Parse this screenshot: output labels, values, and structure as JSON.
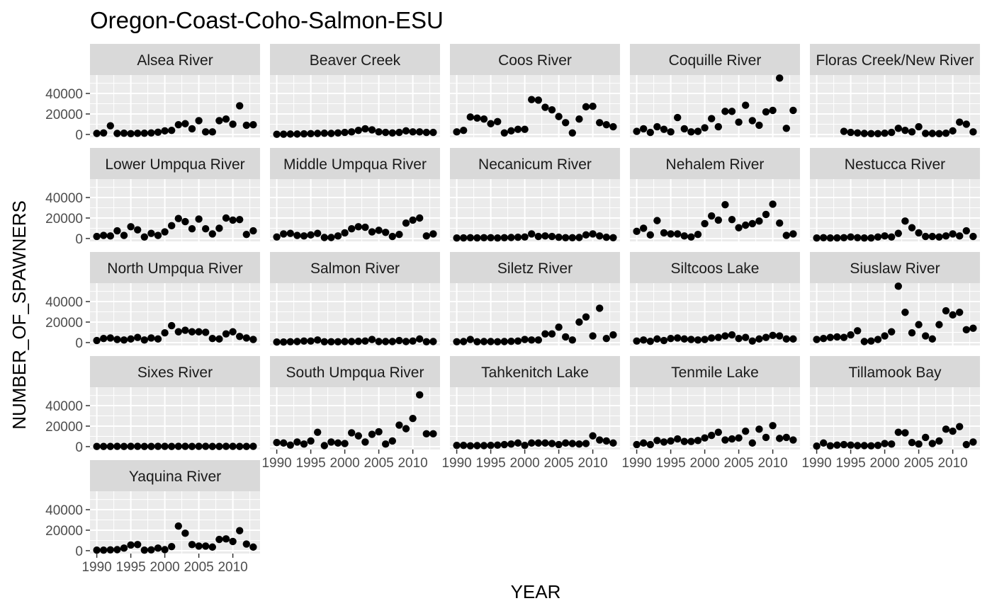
{
  "chart_data": {
    "type": "scatter",
    "title": "Oregon-Coast-Coho-Salmon-ESU",
    "xlabel": "YEAR",
    "ylabel": "NUMBER_OF_SPAWNERS",
    "xlim": [
      1989,
      2014
    ],
    "ylim": [
      -2800,
      58000
    ],
    "x_ticks": [
      1990,
      1995,
      2000,
      2005,
      2010
    ],
    "x_tick_labels": [
      "1990",
      "1995",
      "2000",
      "2005",
      "2010"
    ],
    "y_ticks": [
      0,
      20000,
      40000
    ],
    "y_tick_labels": [
      "0",
      "20000",
      "40000"
    ],
    "grid": true,
    "facets": [
      {
        "name": "Alsea River",
        "x": [
          1990,
          1991,
          1992,
          1993,
          1994,
          1995,
          1996,
          1997,
          1998,
          1999,
          2000,
          2001,
          2002,
          2003,
          2004,
          2005,
          2006,
          2007,
          2008,
          2009,
          2010,
          2011,
          2012,
          2013
        ],
        "y": [
          1000,
          1500,
          8500,
          1000,
          1200,
          800,
          1100,
          1200,
          1500,
          2200,
          3500,
          4000,
          9500,
          10500,
          5500,
          13500,
          2500,
          2500,
          13500,
          15000,
          10000,
          28000,
          9000,
          9500
        ]
      },
      {
        "name": "Beaver Creek",
        "x": [
          1990,
          1991,
          1992,
          1993,
          1994,
          1995,
          1996,
          1997,
          1998,
          1999,
          2000,
          2001,
          2002,
          2003,
          2004,
          2005,
          2006,
          2007,
          2008,
          2009,
          2010,
          2011,
          2012,
          2013
        ],
        "y": [
          200,
          300,
          400,
          400,
          600,
          800,
          1000,
          1200,
          1000,
          1500,
          2000,
          2500,
          4000,
          5500,
          4500,
          2500,
          2000,
          1500,
          2000,
          3500,
          2500,
          2500,
          2000,
          2000
        ]
      },
      {
        "name": "Coos River",
        "x": [
          1990,
          1991,
          1992,
          1993,
          1994,
          1995,
          1996,
          1997,
          1998,
          1999,
          2000,
          2001,
          2002,
          2003,
          2004,
          2005,
          2006,
          2007,
          2008,
          2009,
          2010,
          2011,
          2012,
          2013
        ],
        "y": [
          2500,
          4000,
          17000,
          16000,
          15000,
          10500,
          12500,
          1500,
          3500,
          5000,
          5000,
          34000,
          33500,
          26500,
          24000,
          17500,
          11500,
          1500,
          15000,
          27000,
          27500,
          11500,
          9500,
          7500
        ]
      },
      {
        "name": "Coquille River",
        "x": [
          1990,
          1991,
          1992,
          1993,
          1994,
          1995,
          1996,
          1997,
          1998,
          1999,
          2000,
          2001,
          2002,
          2003,
          2004,
          2005,
          2006,
          2007,
          2008,
          2009,
          2010,
          2011,
          2012,
          2013
        ],
        "y": [
          3000,
          5500,
          2000,
          7500,
          5000,
          2500,
          16500,
          5500,
          2500,
          3000,
          6500,
          15500,
          7500,
          22500,
          22500,
          12000,
          28500,
          13500,
          9000,
          22000,
          23500,
          55000,
          6000,
          23500
        ]
      },
      {
        "name": "Floras Creek/New River",
        "x": [
          1994,
          1995,
          1996,
          1997,
          1998,
          1999,
          2000,
          2001,
          2002,
          2003,
          2004,
          2005,
          2006,
          2007,
          2008,
          2009,
          2010,
          2011,
          2012,
          2013
        ],
        "y": [
          3000,
          2000,
          1500,
          1000,
          800,
          800,
          1200,
          2000,
          6000,
          4000,
          2500,
          7500,
          1000,
          1000,
          800,
          1200,
          3500,
          12000,
          10000,
          2500
        ]
      },
      {
        "name": "Lower Umpqua River",
        "x": [
          1990,
          1991,
          1992,
          1993,
          1994,
          1995,
          1996,
          1997,
          1998,
          1999,
          2000,
          2001,
          2002,
          2003,
          2004,
          2005,
          2006,
          2007,
          2008,
          2009,
          2010,
          2011,
          2012,
          2013
        ],
        "y": [
          2000,
          3000,
          2500,
          7500,
          3000,
          11500,
          8500,
          1500,
          5000,
          3000,
          6500,
          12500,
          19500,
          16500,
          9500,
          19000,
          9500,
          4500,
          10000,
          20000,
          18000,
          18500,
          4000,
          7500
        ]
      },
      {
        "name": "Middle Umpqua River",
        "x": [
          1990,
          1991,
          1992,
          1993,
          1994,
          1995,
          1996,
          1997,
          1998,
          1999,
          2000,
          2001,
          2002,
          2003,
          2004,
          2005,
          2006,
          2007,
          2008,
          2009,
          2010,
          2011,
          2012,
          2013
        ],
        "y": [
          1500,
          4500,
          5000,
          3000,
          2500,
          3500,
          5000,
          1000,
          1000,
          2500,
          5500,
          9500,
          11500,
          11000,
          6500,
          8000,
          6000,
          2000,
          4000,
          15000,
          18000,
          20000,
          2500,
          4500
        ]
      },
      {
        "name": "Necanicum River",
        "x": [
          1990,
          1991,
          1992,
          1993,
          1994,
          1995,
          1996,
          1997,
          1998,
          1999,
          2000,
          2001,
          2002,
          2003,
          2004,
          2005,
          2006,
          2007,
          2008,
          2009,
          2010,
          2011,
          2012,
          2013
        ],
        "y": [
          500,
          600,
          800,
          600,
          800,
          800,
          500,
          800,
          1000,
          1200,
          1500,
          4500,
          2000,
          2500,
          2000,
          1200,
          800,
          800,
          1000,
          3500,
          4500,
          2500,
          1200,
          800
        ]
      },
      {
        "name": "Nehalem River",
        "x": [
          1990,
          1991,
          1992,
          1993,
          1994,
          1995,
          1996,
          1997,
          1998,
          1999,
          2000,
          2001,
          2002,
          2003,
          2004,
          2005,
          2006,
          2007,
          2008,
          2009,
          2010,
          2011,
          2012,
          2013
        ],
        "y": [
          7000,
          10000,
          3500,
          17500,
          5500,
          4500,
          4500,
          2500,
          1500,
          4000,
          14500,
          22000,
          18000,
          33000,
          18500,
          10500,
          13000,
          14500,
          17000,
          23500,
          33500,
          15000,
          3000,
          4500
        ]
      },
      {
        "name": "Nestucca River",
        "x": [
          1990,
          1991,
          1992,
          1993,
          1994,
          1995,
          1996,
          1997,
          1998,
          1999,
          2000,
          2001,
          2002,
          2003,
          2004,
          2005,
          2006,
          2007,
          2008,
          2009,
          2010,
          2011,
          2012,
          2013
        ],
        "y": [
          500,
          800,
          500,
          600,
          800,
          1500,
          800,
          500,
          500,
          1500,
          2500,
          1500,
          5000,
          17000,
          10500,
          5500,
          2000,
          2000,
          1500,
          2500,
          4500,
          2500,
          7500,
          2000
        ]
      },
      {
        "name": "North Umpqua River",
        "x": [
          1990,
          1991,
          1992,
          1993,
          1994,
          1995,
          1996,
          1997,
          1998,
          1999,
          2000,
          2001,
          2002,
          2003,
          2004,
          2005,
          2006,
          2007,
          2008,
          2009,
          2010,
          2011,
          2012,
          2013
        ],
        "y": [
          2000,
          4000,
          4500,
          3000,
          2500,
          3500,
          5000,
          2500,
          4500,
          3500,
          9500,
          16500,
          10500,
          12000,
          10500,
          10500,
          10000,
          4000,
          3500,
          8500,
          10500,
          6000,
          4500,
          3000
        ]
      },
      {
        "name": "Salmon River",
        "x": [
          1990,
          1991,
          1992,
          1993,
          1994,
          1995,
          1996,
          1997,
          1998,
          1999,
          2000,
          2001,
          2002,
          2003,
          2004,
          2005,
          2006,
          2007,
          2008,
          2009,
          2010,
          2011,
          2012,
          2013
        ],
        "y": [
          500,
          500,
          800,
          1000,
          1500,
          1500,
          2500,
          800,
          800,
          800,
          1000,
          1000,
          1200,
          1500,
          3000,
          1000,
          1000,
          1000,
          2000,
          1000,
          1500,
          3500,
          800,
          1000
        ]
      },
      {
        "name": "Siletz River",
        "x": [
          1990,
          1991,
          1992,
          1993,
          1994,
          1995,
          1996,
          1997,
          1998,
          1999,
          2000,
          2001,
          2002,
          2003,
          2004,
          2005,
          2006,
          2007,
          2008,
          2009,
          2010,
          2011,
          2012,
          2013
        ],
        "y": [
          800,
          1000,
          3000,
          800,
          1000,
          1000,
          800,
          1000,
          1200,
          1500,
          3000,
          2500,
          2500,
          8500,
          8500,
          15000,
          5500,
          2500,
          20000,
          25000,
          6500,
          33500,
          4000,
          7500
        ]
      },
      {
        "name": "Siltcoos Lake",
        "x": [
          1990,
          1991,
          1992,
          1993,
          1994,
          1995,
          1996,
          1997,
          1998,
          1999,
          2000,
          2001,
          2002,
          2003,
          2004,
          2005,
          2006,
          2007,
          2008,
          2009,
          2010,
          2011,
          2012,
          2013
        ],
        "y": [
          1500,
          2500,
          1200,
          3500,
          2000,
          4000,
          4500,
          3500,
          3000,
          2500,
          3000,
          4500,
          5000,
          6500,
          7500,
          4000,
          5000,
          1500,
          3500,
          5000,
          7000,
          6500,
          3500,
          3500
        ]
      },
      {
        "name": "Siuslaw River",
        "x": [
          1990,
          1991,
          1992,
          1993,
          1994,
          1995,
          1996,
          1997,
          1998,
          1999,
          2000,
          2001,
          2002,
          2003,
          2004,
          2005,
          2006,
          2007,
          2008,
          2009,
          2010,
          2011,
          2012,
          2013
        ],
        "y": [
          3000,
          4000,
          5000,
          5500,
          5000,
          7500,
          11500,
          1000,
          1500,
          3000,
          6500,
          10500,
          55000,
          29500,
          9500,
          17500,
          6500,
          3500,
          17500,
          31000,
          27000,
          29500,
          12500,
          14000
        ]
      },
      {
        "name": "Sixes River",
        "x": [
          1990,
          1991,
          1992,
          1993,
          1994,
          1995,
          1996,
          1997,
          1998,
          1999,
          2000,
          2001,
          2002,
          2003,
          2004,
          2005,
          2006,
          2007,
          2008,
          2009,
          2010,
          2011,
          2012,
          2013
        ],
        "y": [
          200,
          200,
          200,
          300,
          200,
          300,
          300,
          200,
          200,
          300,
          300,
          200,
          300,
          300,
          200,
          300,
          300,
          200,
          200,
          300,
          300,
          200,
          200,
          300
        ]
      },
      {
        "name": "South Umpqua River",
        "x": [
          1990,
          1991,
          1992,
          1993,
          1994,
          1995,
          1996,
          1997,
          1998,
          1999,
          2000,
          2001,
          2002,
          2003,
          2004,
          2005,
          2006,
          2007,
          2008,
          2009,
          2010,
          2011,
          2012,
          2013
        ],
        "y": [
          4000,
          3500,
          1500,
          4500,
          2500,
          5500,
          14000,
          1000,
          4500,
          3500,
          3000,
          13500,
          10500,
          4500,
          12000,
          14500,
          2500,
          5500,
          21000,
          17500,
          27500,
          50500,
          12500,
          12500
        ]
      },
      {
        "name": "Tahkenitch Lake",
        "x": [
          1990,
          1991,
          1992,
          1993,
          1994,
          1995,
          1996,
          1997,
          1998,
          1999,
          2000,
          2001,
          2002,
          2003,
          2004,
          2005,
          2006,
          2007,
          2008,
          2009,
          2010,
          2011,
          2012,
          2013
        ],
        "y": [
          1200,
          1200,
          800,
          1000,
          1000,
          1200,
          1500,
          2000,
          2500,
          3500,
          1200,
          3500,
          3500,
          3500,
          3000,
          2000,
          3500,
          3000,
          2500,
          3000,
          10500,
          6500,
          5500,
          3500
        ]
      },
      {
        "name": "Tenmile Lake",
        "x": [
          1990,
          1991,
          1992,
          1993,
          1994,
          1995,
          1996,
          1997,
          1998,
          1999,
          2000,
          2001,
          2002,
          2003,
          2004,
          2005,
          2006,
          2007,
          2008,
          2009,
          2010,
          2011,
          2012,
          2013
        ],
        "y": [
          2000,
          3500,
          2000,
          6000,
          4500,
          5500,
          7500,
          5000,
          5000,
          6000,
          8500,
          11000,
          14000,
          6500,
          7500,
          8500,
          15000,
          3500,
          17000,
          9000,
          20500,
          8000,
          9000,
          6500
        ]
      },
      {
        "name": "Tillamook Bay",
        "x": [
          1990,
          1991,
          1992,
          1993,
          1994,
          1995,
          1996,
          1997,
          1998,
          1999,
          2000,
          2001,
          2002,
          2003,
          2004,
          2005,
          2006,
          2007,
          2008,
          2009,
          2010,
          2011,
          2012,
          2013
        ],
        "y": [
          500,
          3500,
          800,
          1500,
          2000,
          1500,
          1000,
          1000,
          800,
          1200,
          3000,
          2500,
          14000,
          13500,
          4000,
          2500,
          9000,
          3000,
          5500,
          17000,
          15000,
          19500,
          2000,
          4500
        ]
      },
      {
        "name": "Yaquina River",
        "x": [
          1990,
          1991,
          1992,
          1993,
          1994,
          1995,
          1996,
          1997,
          1998,
          1999,
          2000,
          2001,
          2002,
          2003,
          2004,
          2005,
          2006,
          2007,
          2008,
          2009,
          2010,
          2011,
          2012,
          2013
        ],
        "y": [
          500,
          500,
          800,
          1000,
          2500,
          5500,
          6000,
          500,
          800,
          2500,
          1000,
          4000,
          24000,
          17000,
          6000,
          4500,
          4500,
          3500,
          11000,
          11500,
          9000,
          19500,
          6500,
          3500
        ]
      }
    ]
  }
}
